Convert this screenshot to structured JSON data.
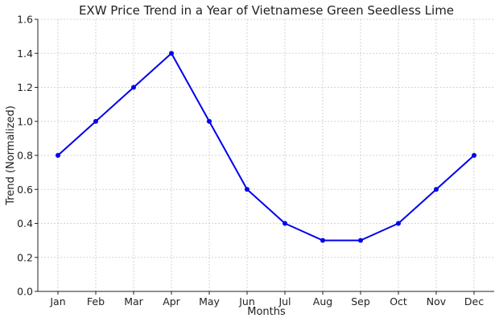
{
  "chart_data": {
    "type": "line",
    "title": "EXW Price Trend in a Year of Vietnamese Green Seedless Lime",
    "xlabel": "Months",
    "ylabel": "Trend (Normalized)",
    "categories": [
      "Jan",
      "Feb",
      "Mar",
      "Apr",
      "May",
      "Jun",
      "Jul",
      "Aug",
      "Sep",
      "Oct",
      "Nov",
      "Dec"
    ],
    "series": [
      {
        "values": [
          0.8,
          1.0,
          1.2,
          1.4,
          1.0,
          0.6,
          0.4,
          0.3,
          0.3,
          0.4,
          0.6,
          0.8
        ],
        "color": "#0000ee"
      }
    ],
    "ylim": [
      0,
      1.6
    ],
    "yticks": [
      "0.0",
      "0.2",
      "0.4",
      "0.6",
      "0.8",
      "1.0",
      "1.2",
      "1.4",
      "1.6"
    ],
    "grid": true,
    "grid_style": "dashed"
  }
}
